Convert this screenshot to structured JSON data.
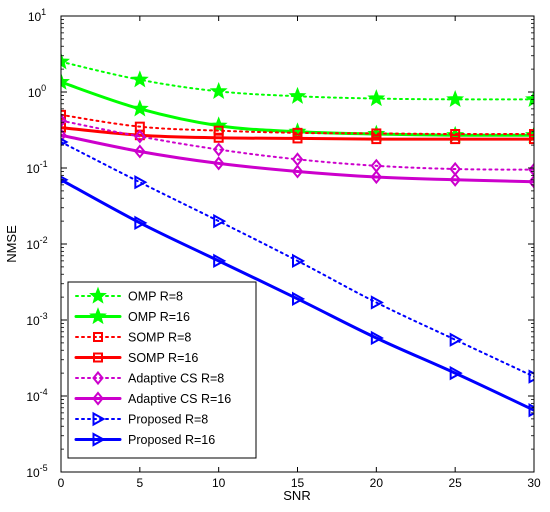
{
  "chart_data": {
    "type": "line",
    "xlabel": "SNR",
    "ylabel": "NMSE",
    "xlim": [
      0,
      30
    ],
    "ylim": [
      1e-05,
      10
    ],
    "yscale": "log",
    "x_ticks": [
      "0",
      "5",
      "10",
      "15",
      "20",
      "25",
      "30"
    ],
    "y_ticks": [
      {
        "base": "10",
        "exp": "1"
      },
      {
        "base": "10",
        "exp": "0"
      },
      {
        "base": "10",
        "exp": "-1"
      },
      {
        "base": "10",
        "exp": "-2"
      },
      {
        "base": "10",
        "exp": "-3"
      },
      {
        "base": "10",
        "exp": "-4"
      },
      {
        "base": "10",
        "exp": "-5"
      }
    ],
    "grid": false,
    "legend_position": "bottom-left",
    "x": [
      0,
      5,
      10,
      15,
      20,
      25,
      30
    ],
    "series": [
      {
        "name": "OMP R=8",
        "color": "#00ff00",
        "line": "dotted",
        "marker": "star",
        "values": [
          2.5,
          1.45,
          1.02,
          0.88,
          0.82,
          0.8,
          0.8
        ]
      },
      {
        "name": "OMP R=16",
        "color": "#00ff00",
        "line": "solid",
        "marker": "star",
        "values": [
          1.35,
          0.6,
          0.36,
          0.3,
          0.28,
          0.27,
          0.27
        ]
      },
      {
        "name": "SOMP R=8",
        "color": "#ff0000",
        "line": "dotted",
        "marker": "square",
        "values": [
          0.5,
          0.35,
          0.31,
          0.29,
          0.285,
          0.28,
          0.28
        ]
      },
      {
        "name": "SOMP R=16",
        "color": "#ff0000",
        "line": "solid",
        "marker": "square",
        "values": [
          0.34,
          0.27,
          0.25,
          0.245,
          0.24,
          0.24,
          0.24
        ]
      },
      {
        "name": "Adaptive CS R=8",
        "color": "#cc00cc",
        "line": "dotted",
        "marker": "diamond",
        "values": [
          0.42,
          0.26,
          0.175,
          0.13,
          0.107,
          0.097,
          0.095
        ]
      },
      {
        "name": "Adaptive CS R=16",
        "color": "#cc00cc",
        "line": "solid",
        "marker": "diamond",
        "values": [
          0.27,
          0.165,
          0.115,
          0.09,
          0.076,
          0.07,
          0.066
        ]
      },
      {
        "name": "Proposed R=8",
        "color": "#0000ff",
        "line": "dotted",
        "marker": "triangle-right",
        "values": [
          0.22,
          0.065,
          0.02,
          0.006,
          0.0017,
          0.00055,
          0.00018
        ]
      },
      {
        "name": "Proposed R=16",
        "color": "#0000ff",
        "line": "solid",
        "marker": "triangle-right",
        "values": [
          0.07,
          0.019,
          0.006,
          0.0019,
          0.00058,
          0.0002,
          6.5e-05
        ]
      }
    ]
  }
}
